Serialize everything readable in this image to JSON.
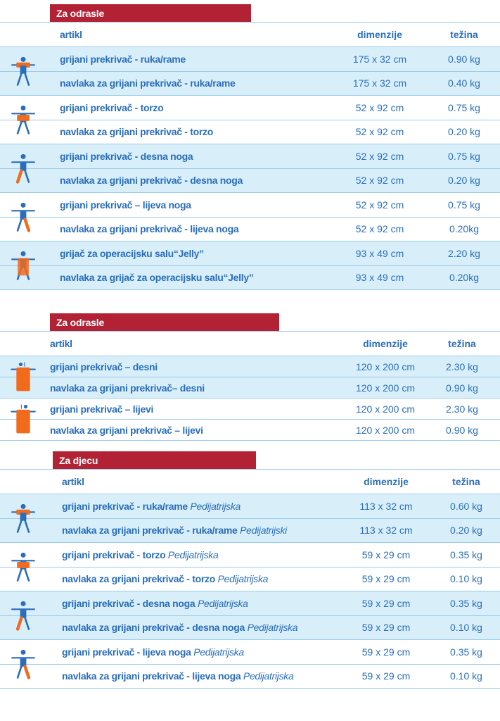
{
  "sections": [
    {
      "title": "Za odrasle",
      "headers": {
        "artikl": "artikl",
        "dimenzije": "dimenzije",
        "tezina": "težina"
      },
      "groups": [
        {
          "icon": "arm",
          "rows": [
            {
              "name": "grijani prekrivač - ruka/rame",
              "dim": "175 x 32 cm",
              "w": "0.90 kg"
            },
            {
              "name": "navlaka za grijani prekrivač - ruka/rame",
              "dim": "175 x 32 cm",
              "w": "0.40 kg"
            }
          ]
        },
        {
          "icon": "torso",
          "rows": [
            {
              "name": "grijani prekrivač - torzo",
              "dim": "52 x 92 cm",
              "w": "0.75 kg"
            },
            {
              "name": "navlaka za grijani prekrivač - torzo",
              "dim": "52 x 92 cm",
              "w": "0.20 kg"
            }
          ]
        },
        {
          "icon": "right-leg",
          "rows": [
            {
              "name": "grijani prekrivač - desna noga",
              "dim": "52 x 92 cm",
              "w": "0.75 kg"
            },
            {
              "name": "navlaka za grijani prekrivač - desna noga",
              "dim": "52 x 92 cm",
              "w": "0.20 kg"
            }
          ]
        },
        {
          "icon": "left-leg",
          "rows": [
            {
              "name": "grijani prekrivač – lijeva noga",
              "dim": "52 x 92 cm",
              "w": "0.75 kg"
            },
            {
              "name": "navlaka za grijani prekrivač - lijeva noga",
              "dim": "52 x 92 cm",
              "w": "0.20kg"
            }
          ]
        },
        {
          "icon": "jelly",
          "rows": [
            {
              "name": "grijač za operacijsku salu“Jelly”",
              "dim": "93 x 49 cm",
              "w": "2.20 kg"
            },
            {
              "name": "navlaka za grijač za operacijsku salu“Jelly”",
              "dim": "93 x 49 cm",
              "w": "0.20kg"
            }
          ]
        }
      ]
    },
    {
      "title": "Za odrasle",
      "headers": {
        "artikl": "artikl",
        "dimenzije": "dimenzije",
        "tezina": "težina"
      },
      "groups": [
        {
          "icon": "side-right",
          "rows": [
            {
              "name": "grijani prekrivač  – desni",
              "dim": "120 x 200 cm",
              "w": "2.30 kg"
            },
            {
              "name": "navlaka za grijani prekrivač– desni",
              "dim": "120 x 200 cm",
              "w": "0.90 kg"
            }
          ]
        },
        {
          "icon": "side-left",
          "rows": [
            {
              "name": "grijani prekrivač – lijevi",
              "dim": "120 x 200 cm",
              "w": "2.30 kg"
            },
            {
              "name": "navlaka za grijani prekrivač – lijevi",
              "dim": "120 x 200 cm",
              "w": "0.90 kg"
            }
          ]
        }
      ]
    },
    {
      "title": "Za djecu",
      "headers": {
        "artikl": "artikl",
        "dimenzije": "dimenzije",
        "tezina": "težina"
      },
      "groups": [
        {
          "icon": "arm",
          "rows": [
            {
              "name": "grijani prekrivač - ruka/rame",
              "suffix": "Pedijatrijska",
              "dim": "113 x 32 cm",
              "w": "0.60 kg"
            },
            {
              "name": "navlaka za grijani prekrivač - ruka/rame",
              "suffix": "Pedijatrijski",
              "dim": "113 x 32 cm",
              "w": "0.20 kg"
            }
          ]
        },
        {
          "icon": "torso",
          "rows": [
            {
              "name": "grijani prekrivač - torzo",
              "suffix": "Pedijatrijska",
              "dim": "59 x 29 cm",
              "w": "0.35 kg"
            },
            {
              "name": "navlaka za grijani prekrivač - torzo",
              "suffix": "Pedijatrijska",
              "dim": "59 x 29 cm",
              "w": "0.10 kg"
            }
          ]
        },
        {
          "icon": "right-leg",
          "rows": [
            {
              "name": "grijani prekrivač - desna noga",
              "suffix": "Pedijatrijska",
              "dim": "59 x 29 cm",
              "w": "0.35 kg"
            },
            {
              "name": "navlaka za grijani prekrivač - desna noga",
              "suffix": "Pedijatrijska",
              "dim": "59 x 29 cm",
              "w": "0.10 kg"
            }
          ]
        },
        {
          "icon": "left-leg",
          "rows": [
            {
              "name": "grijani prekrivač - lijeva noga",
              "suffix": "Pedijatrijska",
              "dim": "59 x 29 cm",
              "w": "0.35 kg"
            },
            {
              "name": "navlaka za grijani prekrivač - lijeva noga",
              "suffix": "Pedijatrijska",
              "dim": "59 x 29 cm",
              "w": "0.10 kg"
            }
          ]
        }
      ]
    }
  ],
  "colors": {
    "red": "#b22234",
    "blue": "#2a6ebb",
    "orange": "#f26a1b",
    "rowbg": "#d8effa"
  }
}
